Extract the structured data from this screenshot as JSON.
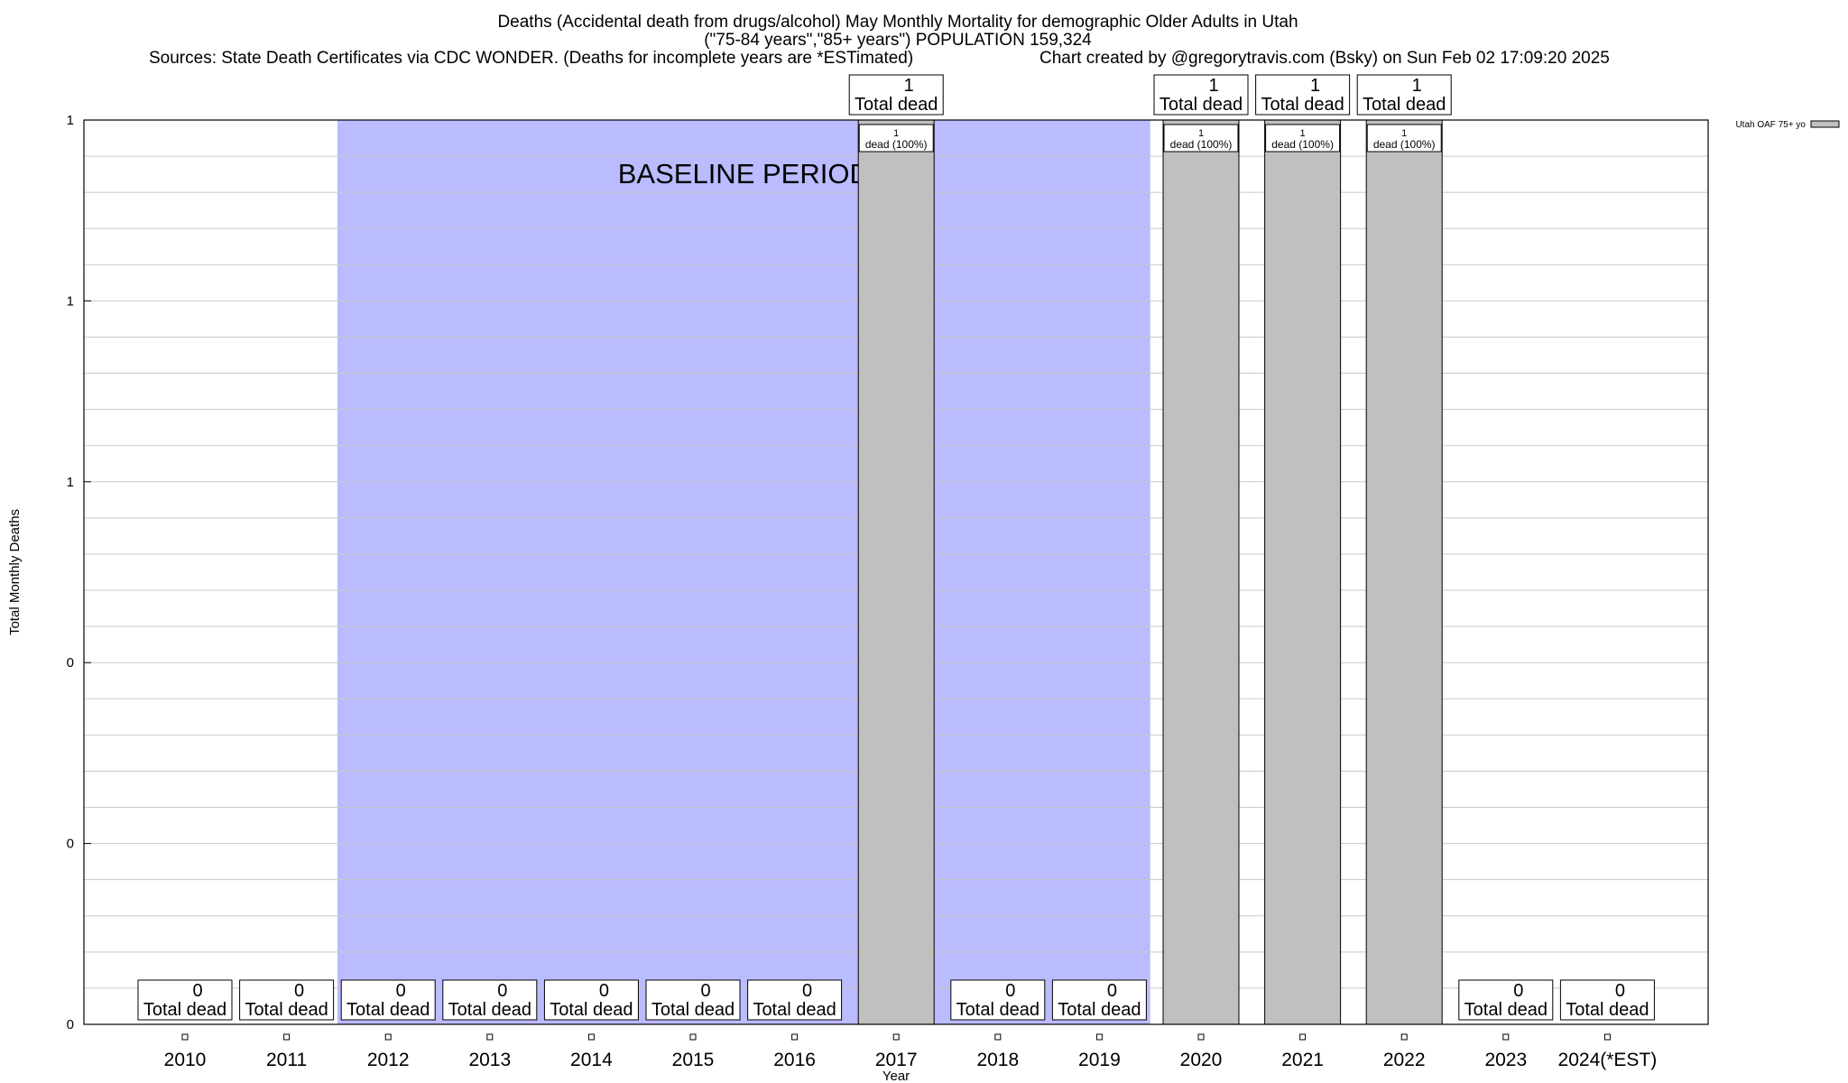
{
  "chart_data": {
    "type": "bar",
    "title": "Deaths (Accidental death from drugs/alcohol) May Monthly Mortality for demographic Older Adults in Utah",
    "subtitle": "(\"75-84 years\",\"85+ years\") POPULATION 159,324",
    "sources": "Sources: State Death Certificates via CDC WONDER. (Deaths for incomplete years are *ESTimated)",
    "credit": "Chart created by @gregorytravis.com (Bsky) on Sun Feb 02 17:09:20 2025",
    "xlabel": "Year",
    "ylabel": "Total Monthly Deaths",
    "categories": [
      "2010",
      "2011",
      "2012",
      "2013",
      "2014",
      "2015",
      "2016",
      "2017",
      "2018",
      "2019",
      "2020",
      "2021",
      "2022",
      "2023",
      "2024(*EST)"
    ],
    "series": [
      {
        "name": "Utah OAF 75+ yo",
        "values": [
          0,
          0,
          0,
          0,
          0,
          0,
          0,
          1,
          0,
          0,
          1,
          1,
          1,
          0,
          0
        ],
        "color": "#c0c0c0"
      }
    ],
    "total_label_suffix": "Total dead",
    "segment_labels": [
      "",
      "",
      "",
      "",
      "",
      "",
      "",
      "1 dead (100%)",
      "",
      "",
      "1 dead (100%)",
      "1 dead (100%)",
      "1 dead (100%)",
      "",
      ""
    ],
    "ylim": [
      0,
      1
    ],
    "ytick_labels": [
      "0",
      "0",
      "0",
      "1",
      "1",
      "1"
    ],
    "baseline_label": "BASELINE PERIOD",
    "baseline_years": [
      "2012",
      "2019"
    ],
    "baseline_color": "#bbbbff",
    "grid": true,
    "legend_position": "top-right"
  }
}
